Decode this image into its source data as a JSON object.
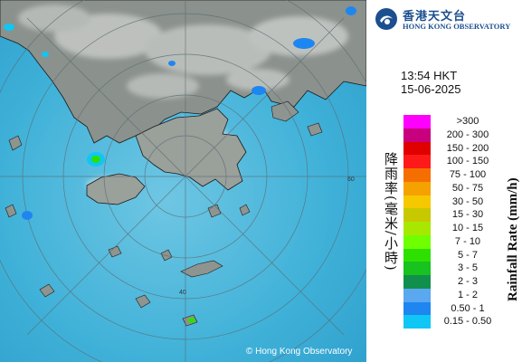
{
  "map": {
    "sea_color": "#3fb1d8",
    "land_color": "#8a8f8a",
    "range_ring_label": "40",
    "range_ring_label_outer": "60",
    "copyright": "© Hong Kong Observatory"
  },
  "header": {
    "org_name_zh": "香港天文台",
    "org_name_en": "HONG KONG OBSERVATORY",
    "time": "13:54 HKT",
    "date": "15-06-2025"
  },
  "legend": {
    "title_zh": "降雨率(毫米/小時)",
    "title_en": "Rainfall Rate (mm/h)",
    "bins": [
      {
        "label": ">300",
        "color": "#ff00ff"
      },
      {
        "label": "200 - 300",
        "color": "#c8007d"
      },
      {
        "label": "150 - 200",
        "color": "#e00000"
      },
      {
        "label": "100 - 150",
        "color": "#ff1a1a"
      },
      {
        "label": "75 - 100",
        "color": "#f56f00"
      },
      {
        "label": "50 - 75",
        "color": "#f5a100"
      },
      {
        "label": "30 - 50",
        "color": "#f6c800"
      },
      {
        "label": "15 - 30",
        "color": "#c8c800"
      },
      {
        "label": "10 - 15",
        "color": "#a8e800"
      },
      {
        "label": "7 - 10",
        "color": "#6fff00"
      },
      {
        "label": "5 - 7",
        "color": "#2ee000"
      },
      {
        "label": "3 - 5",
        "color": "#18c21f"
      },
      {
        "label": "2 - 3",
        "color": "#11904d"
      },
      {
        "label": "1 - 2",
        "color": "#5aa8f0"
      },
      {
        "label": "0.50 - 1",
        "color": "#1e86f0"
      },
      {
        "label": "0.15 - 0.50",
        "color": "#10c6f4"
      }
    ]
  }
}
